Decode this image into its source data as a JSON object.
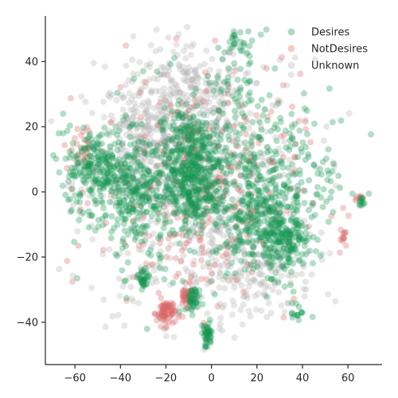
{
  "chart_data": {
    "type": "scatter",
    "title": "",
    "xlabel": "",
    "ylabel": "",
    "xlim": [
      -73,
      75
    ],
    "ylim": [
      -53,
      54
    ],
    "x_ticks": [
      -60,
      -40,
      -20,
      0,
      20,
      40,
      60
    ],
    "y_ticks": [
      -40,
      -20,
      0,
      20,
      40
    ],
    "x_tick_labels": [
      "−60",
      "−40",
      "−20",
      "0",
      "20",
      "40",
      "60"
    ],
    "y_tick_labels": [
      "−40",
      "−20",
      "0",
      "20",
      "40"
    ],
    "grid": false,
    "legend_position": "top-right",
    "series": [
      {
        "name": "Desires",
        "color": "#149650",
        "clusters": [
          {
            "x": -50,
            "y": 7,
            "sx": 7,
            "sy": 6,
            "n": 220
          },
          {
            "x": -33,
            "y": 0,
            "sx": 6,
            "sy": 8,
            "n": 180
          },
          {
            "x": -10,
            "y": 12,
            "sx": 7,
            "sy": 7,
            "n": 260
          },
          {
            "x": -8,
            "y": 0,
            "sx": 6,
            "sy": 6,
            "n": 200
          },
          {
            "x": 20,
            "y": -8,
            "sx": 7,
            "sy": 8,
            "n": 200
          },
          {
            "x": 33,
            "y": -15,
            "sx": 5,
            "sy": 5,
            "n": 150
          },
          {
            "x": 22,
            "y": 3,
            "sx": 14,
            "sy": 14,
            "n": 200
          },
          {
            "x": 10,
            "y": 33,
            "sx": 6,
            "sy": 8,
            "n": 60
          },
          {
            "x": 42,
            "y": 4,
            "sx": 12,
            "sy": 10,
            "n": 80
          },
          {
            "x": -8,
            "y": -33,
            "sx": 1.5,
            "sy": 2,
            "n": 40
          },
          {
            "x": -30,
            "y": -27,
            "sx": 1.2,
            "sy": 1.8,
            "n": 35
          },
          {
            "x": -2,
            "y": -44,
            "sx": 1.3,
            "sy": 2,
            "n": 45
          },
          {
            "x": 38,
            "y": -37,
            "sx": 1.5,
            "sy": 1.5,
            "n": 15
          },
          {
            "x": 66,
            "y": -3,
            "sx": 1,
            "sy": 1,
            "n": 10
          },
          {
            "x": 12,
            "y": 46,
            "sx": 2,
            "sy": 3,
            "n": 15
          },
          {
            "x": -20,
            "y": 0,
            "sx": 20,
            "sy": 15,
            "n": 250
          }
        ]
      },
      {
        "name": "NotDesires",
        "color": "#d96a6a",
        "clusters": [
          {
            "x": -20,
            "y": -37,
            "sx": 2,
            "sy": 2,
            "n": 80
          },
          {
            "x": -11,
            "y": -32,
            "sx": 1.5,
            "sy": 1.5,
            "n": 40
          },
          {
            "x": 58,
            "y": -14,
            "sx": 1,
            "sy": 1,
            "n": 12
          },
          {
            "x": 66,
            "y": -2,
            "sx": 1,
            "sy": 1,
            "n": 8
          },
          {
            "x": -5,
            "y": 0,
            "sx": 22,
            "sy": 18,
            "n": 300
          },
          {
            "x": -57,
            "y": 13,
            "sx": 4,
            "sy": 4,
            "n": 30
          }
        ]
      },
      {
        "name": "Unknown",
        "color": "#b4b4b4",
        "clusters": [
          {
            "x": -10,
            "y": 28,
            "sx": 12,
            "sy": 10,
            "n": 260
          },
          {
            "x": -30,
            "y": 15,
            "sx": 10,
            "sy": 10,
            "n": 200
          },
          {
            "x": -5,
            "y": 0,
            "sx": 25,
            "sy": 20,
            "n": 550
          },
          {
            "x": 20,
            "y": -25,
            "sx": 12,
            "sy": 6,
            "n": 130
          }
        ]
      }
    ]
  }
}
